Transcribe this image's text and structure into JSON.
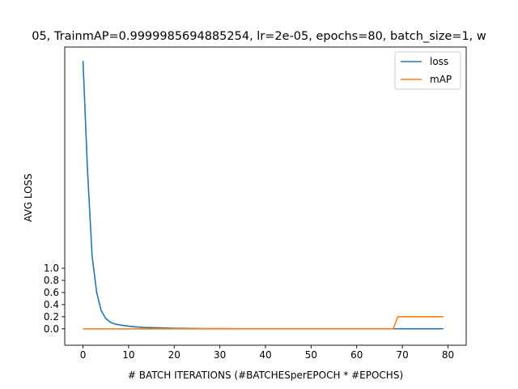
{
  "chart_data": {
    "type": "line",
    "title": "05, TrainmAP=0.9999985694885254, lr=2e-05, epochs=80, batch_size=1, w",
    "xlabel": "# BATCH ITERATIONS (#BATCHESperEPOCH * #EPOCHS)",
    "ylabel": "AVG LOSS",
    "xlim": [
      -4,
      84
    ],
    "ylim": [
      -0.27,
      4.65
    ],
    "xticks": [
      0,
      10,
      20,
      30,
      40,
      50,
      60,
      70,
      80
    ],
    "ytick_labels": [
      "0.0",
      "0.2",
      "0.4",
      "0.6",
      "0.8",
      "1.0"
    ],
    "grid": false,
    "legend_position": "top-right",
    "series": [
      {
        "name": "loss",
        "color": "#1f77b4",
        "x": [
          0,
          1,
          2,
          3,
          4,
          5,
          6,
          7,
          8,
          9,
          10,
          11,
          12,
          13,
          14,
          15,
          16,
          17,
          18,
          19,
          20,
          21,
          22,
          23,
          24,
          25,
          26,
          27,
          28,
          29,
          30,
          31,
          32,
          33,
          34,
          35,
          36,
          37,
          38,
          39,
          40,
          41,
          42,
          43,
          44,
          45,
          46,
          47,
          48,
          49,
          50,
          51,
          52,
          53,
          54,
          55,
          56,
          57,
          58,
          59,
          60,
          61,
          62,
          63,
          64,
          65,
          66,
          67,
          68,
          69,
          70,
          71,
          72,
          73,
          74,
          75,
          76,
          77,
          78,
          79
        ],
        "values": [
          4.42,
          2.6,
          1.2,
          0.6,
          0.3,
          0.17,
          0.11,
          0.08,
          0.065,
          0.055,
          0.045,
          0.037,
          0.03,
          0.025,
          0.022,
          0.02,
          0.018,
          0.016,
          0.014,
          0.012,
          0.01,
          0.009,
          0.008,
          0.007,
          0.006,
          0.005,
          0.005,
          0.004,
          0.004,
          0.003,
          0.003,
          0.003,
          0.003,
          0.002,
          0.002,
          0.002,
          0.002,
          0.002,
          0.002,
          0.002,
          0.002,
          0.002,
          0.002,
          0.002,
          0.002,
          0.002,
          0.002,
          0.002,
          0.002,
          0.002,
          0.002,
          0.002,
          0.002,
          0.002,
          0.002,
          0.002,
          0.002,
          0.002,
          0.002,
          0.002,
          0.002,
          0.002,
          0.002,
          0.002,
          0.002,
          0.002,
          0.002,
          0.002,
          0.002,
          0.002,
          0.002,
          0.002,
          0.002,
          0.002,
          0.002,
          0.002,
          0.002,
          0.002,
          0.002,
          0.002
        ]
      },
      {
        "name": "mAP",
        "color": "#ff7f0e",
        "x": [
          0,
          10,
          20,
          30,
          40,
          50,
          60,
          68,
          69,
          70,
          79
        ],
        "values": [
          0.0,
          0.0,
          0.0,
          0.0,
          0.0,
          0.0,
          0.0,
          0.0,
          0.2,
          0.2,
          0.2
        ]
      }
    ]
  }
}
